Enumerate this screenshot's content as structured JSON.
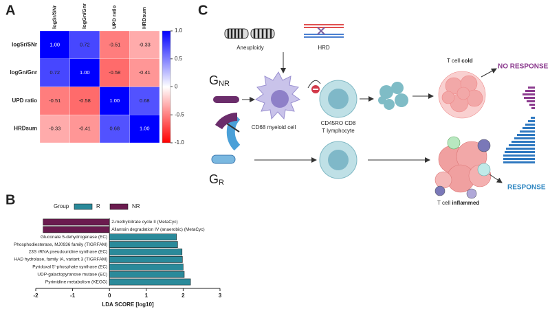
{
  "panel_labels": [
    "A",
    "B",
    "C"
  ],
  "chart_data": [
    {
      "type": "heatmap",
      "x_categories": [
        "logSr/SNr",
        "logGn/Gnr",
        "UPD ratio",
        "HRDsum"
      ],
      "y_categories": [
        "logSr/SNr",
        "logGn/Gnr",
        "UPD ratio",
        "HRDsum"
      ],
      "values": [
        [
          1,
          0.72,
          -0.51,
          -0.33
        ],
        [
          0.72,
          1,
          -0.58,
          -0.41
        ],
        [
          -0.51,
          -0.58,
          1,
          0.68
        ],
        [
          -0.33,
          -0.41,
          0.68,
          1
        ]
      ],
      "value_labels": [
        [
          "1.00",
          "0.72",
          "-0.51",
          "-0.33"
        ],
        [
          "0.72",
          "1.00",
          "-0.58",
          "-0.41"
        ],
        [
          "-0.51",
          "-0.58",
          "1.00",
          "0.68"
        ],
        [
          "-0.33",
          "-0.41",
          "0.68",
          "1.00"
        ]
      ],
      "colormap": [
        "#ff0000",
        "#ffffff",
        "#0000ff"
      ],
      "zlim": [
        -1,
        1
      ],
      "zticks": [
        {
          "value": 1,
          "label": "1.0"
        },
        0.5,
        0,
        -0.5,
        {
          "value": -1,
          "label": "-1.0"
        }
      ]
    },
    {
      "type": "barh",
      "categories": [
        "2-methylcitrate cycle II (MetaCyc)",
        "Allantoin degradation IV (anaerobic) (MetaCyc)",
        "Gluconate 5-dehydrogenase (EC)",
        "Phosphodiesterase, MJ0936 family (TIGRFAM)",
        "23S rRNA pseudouridine synthase (EC)",
        "HAD hydrolase, family IA, variant 3 (TIGRFAM)",
        "Pyridoxal 5'-phosphate synthase (EC)",
        "UDP-galactopyranose mutase (EC)",
        "Pyrimidine metabolism (KEGG)"
      ],
      "series": [
        {
          "name": "R",
          "color": "#2a8a9a",
          "values": [
            null,
            null,
            1.82,
            1.85,
            1.97,
            1.98,
            2.0,
            2.03,
            2.2
          ]
        },
        {
          "name": "NR",
          "color": "#6b1b4f",
          "values": [
            -1.8,
            -1.8,
            null,
            null,
            null,
            null,
            null,
            null,
            null
          ]
        }
      ],
      "legend_title": "Group",
      "xlabel": "LDA SCORE [log10]",
      "xlim": [
        -2,
        3
      ],
      "xticks": [
        -2,
        -1,
        0,
        1,
        2,
        3
      ]
    }
  ],
  "diagram": {
    "aneuploidy": "Aneuploidy",
    "hrd": "HRD",
    "g": "G",
    "nr": "NR",
    "r": "R",
    "myeloid": "CD68 myeloid cell",
    "lymph_1": "CD45RO CD8",
    "lymph_2": "T lymphocyte",
    "cold_prefix": "T cell ",
    "cold_word": "cold",
    "no_response": "NO RESPONSE",
    "response": "RESPONSE",
    "inflamed_prefix": "T cell ",
    "inflamed_word": "inflammed"
  }
}
